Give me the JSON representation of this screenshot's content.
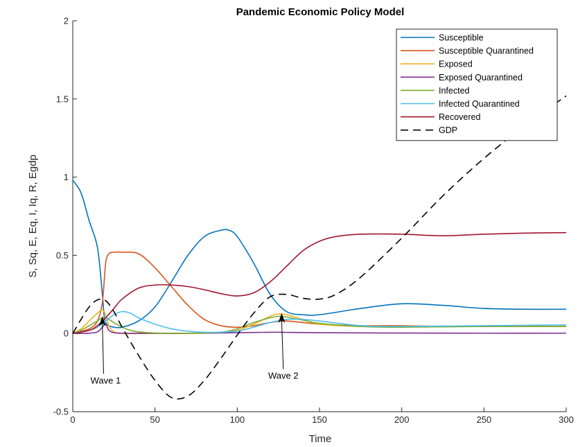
{
  "chart_data": {
    "type": "line",
    "title": "Pandemic Economic Policy Model",
    "xlabel": "Time",
    "ylabel": "S, Sq, E, Eq, I, Iq, R, Egdp",
    "xlim": [
      0,
      300
    ],
    "ylim": [
      -0.5,
      2
    ],
    "xticks": [
      0,
      50,
      100,
      150,
      200,
      250,
      300
    ],
    "yticks": [
      -0.5,
      0,
      0.5,
      1,
      1.5,
      2
    ],
    "xtick_labels": [
      "0",
      "50",
      "100",
      "150",
      "200",
      "250",
      "300"
    ],
    "ytick_labels": [
      "-0.5",
      "0",
      "0.5",
      "1",
      "1.5",
      "2"
    ],
    "grid": false,
    "legend_position": "top-right",
    "series": [
      {
        "name": "Susceptible",
        "color": "#0072BD",
        "dash": "solid",
        "x": [
          0,
          5,
          10,
          15,
          18,
          19,
          20,
          22,
          25,
          30,
          40,
          50,
          60,
          70,
          80,
          90,
          95,
          100,
          110,
          120,
          130,
          140,
          150,
          175,
          200,
          225,
          250,
          275,
          300
        ],
        "y": [
          0.98,
          0.9,
          0.72,
          0.55,
          0.25,
          0.12,
          0.07,
          0.05,
          0.04,
          0.04,
          0.08,
          0.17,
          0.33,
          0.5,
          0.62,
          0.66,
          0.66,
          0.62,
          0.45,
          0.25,
          0.14,
          0.12,
          0.12,
          0.16,
          0.19,
          0.18,
          0.16,
          0.155,
          0.155
        ]
      },
      {
        "name": "Susceptible Quarantined",
        "color": "#D95319",
        "dash": "solid",
        "x": [
          0,
          10,
          15,
          18,
          20,
          22,
          25,
          30,
          40,
          50,
          60,
          70,
          80,
          90,
          100,
          110,
          120,
          130,
          150,
          175,
          200,
          225,
          250,
          275,
          300
        ],
        "y": [
          0,
          0.03,
          0.08,
          0.2,
          0.45,
          0.51,
          0.52,
          0.52,
          0.51,
          0.42,
          0.3,
          0.18,
          0.09,
          0.05,
          0.04,
          0.05,
          0.07,
          0.08,
          0.06,
          0.05,
          0.05,
          0.045,
          0.045,
          0.045,
          0.045
        ]
      },
      {
        "name": "Exposed",
        "color": "#EDB120",
        "dash": "solid",
        "x": [
          0,
          5,
          10,
          15,
          18,
          20,
          22,
          25,
          30,
          40,
          50,
          70,
          90,
          100,
          110,
          120,
          125,
          130,
          140,
          150,
          175,
          200,
          250,
          300
        ],
        "y": [
          0,
          0.03,
          0.08,
          0.13,
          0.15,
          0.12,
          0.05,
          0.01,
          0.0,
          0.0,
          0.0,
          0.0,
          0.005,
          0.02,
          0.06,
          0.11,
          0.125,
          0.12,
          0.09,
          0.06,
          0.045,
          0.045,
          0.045,
          0.045
        ]
      },
      {
        "name": "Exposed Quarantined",
        "color": "#7E2F8E",
        "dash": "solid",
        "x": [
          0,
          10,
          15,
          18,
          20,
          22,
          25,
          30,
          40,
          60,
          80,
          100,
          120,
          130,
          150,
          200,
          250,
          300
        ],
        "y": [
          0,
          0.002,
          0.01,
          0.04,
          0.06,
          0.02,
          0.005,
          0.002,
          0.001,
          0.001,
          0.002,
          0.005,
          0.008,
          0.007,
          0.005,
          0.003,
          0.002,
          0.002
        ]
      },
      {
        "name": "Infected",
        "color": "#77AC30",
        "dash": "solid",
        "x": [
          0,
          5,
          10,
          15,
          18,
          20,
          22,
          25,
          30,
          35,
          40,
          50,
          70,
          90,
          100,
          110,
          120,
          125,
          130,
          140,
          150,
          175,
          200,
          250,
          300
        ],
        "y": [
          0,
          0.02,
          0.05,
          0.08,
          0.1,
          0.1,
          0.09,
          0.07,
          0.04,
          0.02,
          0.01,
          0.003,
          0.002,
          0.008,
          0.03,
          0.07,
          0.1,
          0.11,
          0.105,
          0.085,
          0.065,
          0.045,
          0.04,
          0.045,
          0.045
        ]
      },
      {
        "name": "Infected Quarantined",
        "color": "#4DBEEE",
        "dash": "solid",
        "x": [
          0,
          10,
          15,
          20,
          25,
          30,
          35,
          40,
          50,
          60,
          70,
          80,
          90,
          100,
          110,
          120,
          130,
          140,
          150,
          175,
          200,
          250,
          300
        ],
        "y": [
          0,
          0.02,
          0.04,
          0.08,
          0.12,
          0.14,
          0.13,
          0.1,
          0.06,
          0.03,
          0.015,
          0.008,
          0.008,
          0.015,
          0.04,
          0.07,
          0.09,
          0.09,
          0.08,
          0.05,
          0.045,
          0.05,
          0.055
        ]
      },
      {
        "name": "Recovered",
        "color": "#A2142F",
        "dash": "solid",
        "x": [
          0,
          10,
          15,
          20,
          25,
          30,
          40,
          50,
          60,
          70,
          80,
          90,
          100,
          110,
          120,
          130,
          140,
          150,
          160,
          175,
          200,
          225,
          250,
          275,
          300
        ],
        "y": [
          0,
          0.02,
          0.05,
          0.1,
          0.16,
          0.22,
          0.29,
          0.31,
          0.31,
          0.3,
          0.28,
          0.255,
          0.24,
          0.26,
          0.33,
          0.43,
          0.53,
          0.59,
          0.62,
          0.635,
          0.635,
          0.625,
          0.635,
          0.642,
          0.645
        ]
      },
      {
        "name": "GDP",
        "color": "#000000",
        "dash": "dashed",
        "x": [
          0,
          5,
          10,
          15,
          20,
          25,
          30,
          40,
          50,
          60,
          70,
          80,
          90,
          100,
          110,
          120,
          130,
          140,
          150,
          160,
          175,
          200,
          225,
          250,
          275,
          300
        ],
        "y": [
          0,
          0.09,
          0.17,
          0.215,
          0.21,
          0.14,
          0.04,
          -0.14,
          -0.3,
          -0.41,
          -0.4,
          -0.3,
          -0.16,
          -0.01,
          0.13,
          0.235,
          0.25,
          0.225,
          0.22,
          0.25,
          0.36,
          0.61,
          0.88,
          1.12,
          1.33,
          1.52
        ]
      }
    ],
    "annotations": [
      {
        "text": "Wave 1",
        "x_text": 20,
        "y_text": -0.32,
        "x_arrow": 18,
        "y_arrow": 0.11
      },
      {
        "text": "Wave 2",
        "x_text": 128,
        "y_text": -0.29,
        "x_arrow": 127,
        "y_arrow": 0.13
      }
    ]
  }
}
